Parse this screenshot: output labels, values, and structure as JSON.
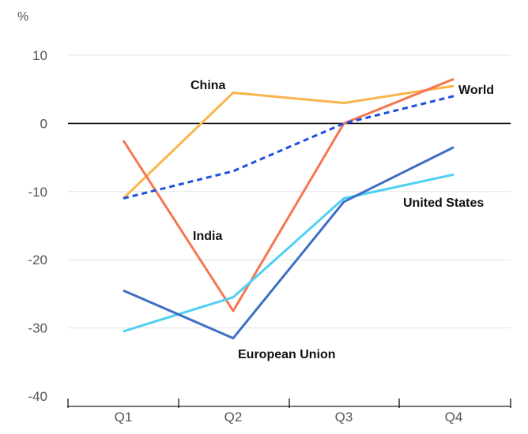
{
  "chart_data": {
    "type": "line",
    "unit_label": "%",
    "categories": [
      "Q1",
      "Q2",
      "Q3",
      "Q4"
    ],
    "ylim": [
      -40,
      10
    ],
    "yticks": [
      10,
      0,
      -10,
      -20,
      -30,
      -40
    ],
    "ytick_labels": [
      "10",
      "0",
      "-10",
      "-20",
      "-30",
      "-40"
    ],
    "grid": true,
    "series": [
      {
        "name": "China",
        "values": [
          -11,
          4.5,
          3,
          5.5
        ],
        "color": "#F9B44A",
        "dashed": false
      },
      {
        "name": "India",
        "values": [
          -2.5,
          -27.5,
          0,
          6.5
        ],
        "color": "#F47752",
        "dashed": false
      },
      {
        "name": "World",
        "values": [
          -11,
          -7,
          0,
          4
        ],
        "color": "#1F4FE0",
        "dashed": true
      },
      {
        "name": "United States",
        "values": [
          -30.5,
          -25.5,
          -11,
          -7.5
        ],
        "color": "#4FD0F3",
        "dashed": false
      },
      {
        "name": "European Union",
        "values": [
          -24.5,
          -31.5,
          -11.5,
          -3.5
        ],
        "color": "#3E6FC5",
        "dashed": false
      }
    ]
  }
}
